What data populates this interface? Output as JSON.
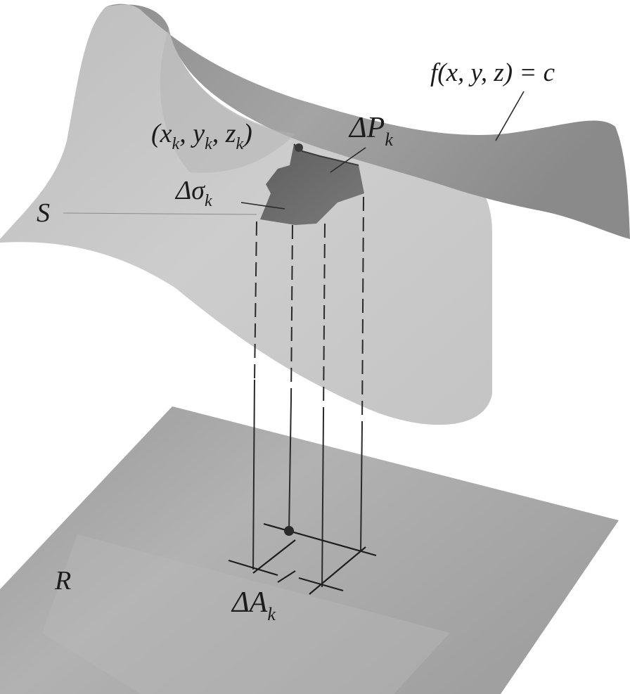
{
  "figure": {
    "labels": {
      "surface_equation": "f(x, y, z) = c",
      "point_prefix": "(x",
      "point_x_sub": "k",
      "point_sep1": ", y",
      "point_y_sub": "k",
      "point_sep2": ", z",
      "point_z_sub": "k",
      "point_suffix": ")",
      "delta_p_main": "ΔP",
      "delta_p_sub": "k",
      "delta_sigma_main": "Δσ",
      "delta_sigma_sub": "k",
      "surface_name": "S",
      "region_name": "R",
      "delta_a_main": "ΔA",
      "delta_a_sub": "k"
    },
    "colors": {
      "surface_light": "#c9c9c9",
      "surface_dark": "#9c9c9c",
      "patch": "#6b6b6b",
      "region": "#a9a9a9",
      "lines": "#2a2a2a"
    }
  }
}
